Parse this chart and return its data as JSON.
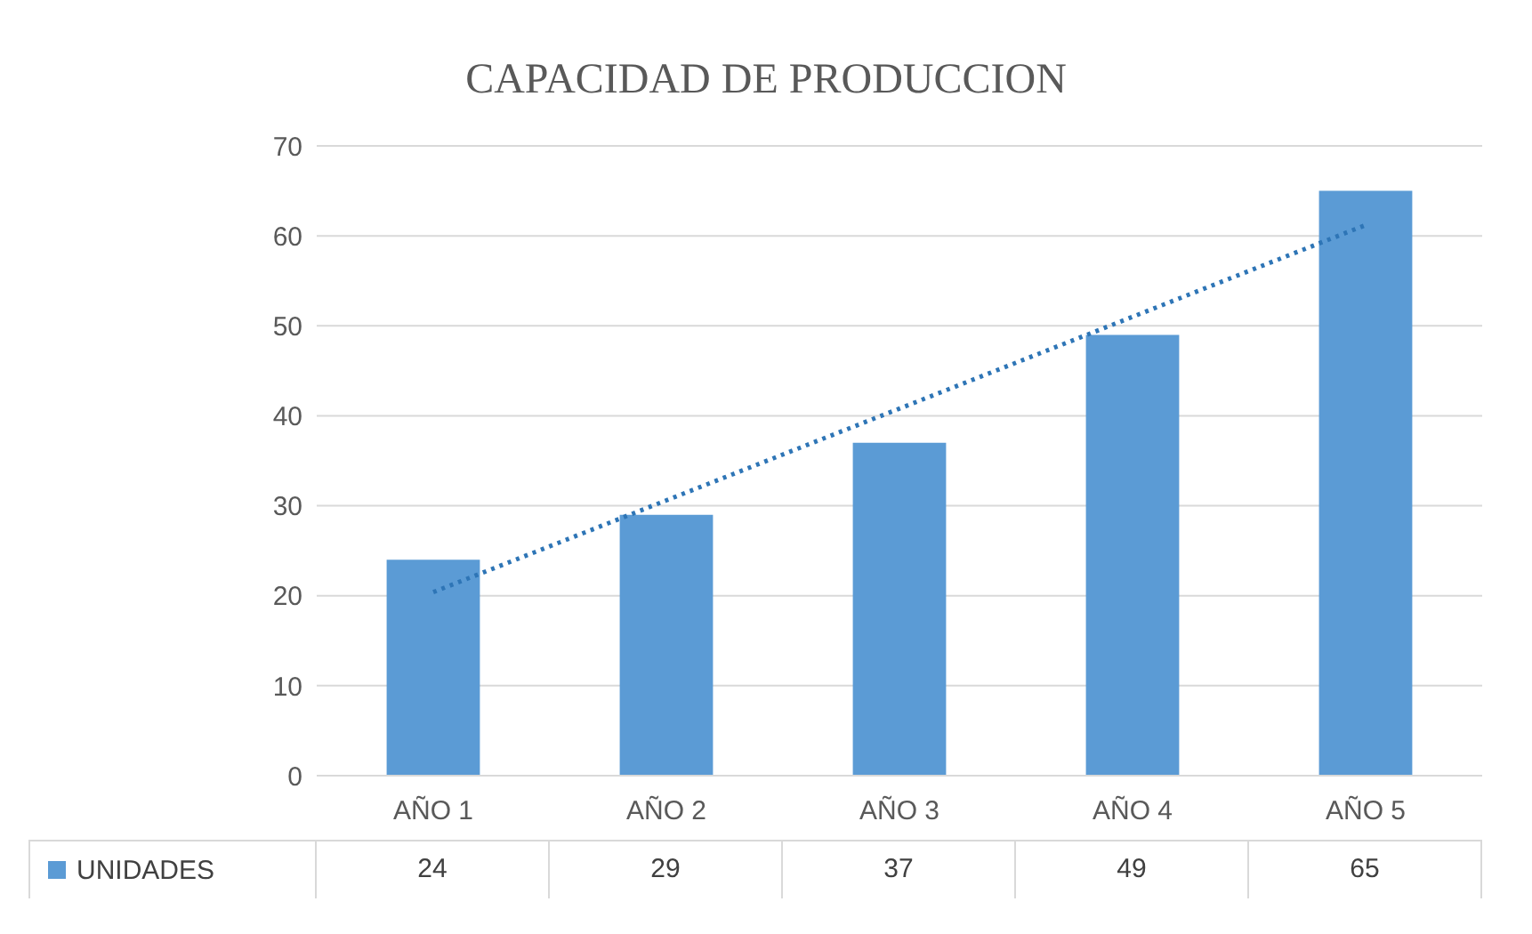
{
  "chart_data": {
    "type": "bar",
    "title": "CAPACIDAD DE PRODUCCION",
    "categories": [
      "AÑO 1",
      "AÑO 2",
      "AÑO 3",
      "AÑO 4",
      "AÑO 5"
    ],
    "series": [
      {
        "name": "UNIDADES",
        "color": "#5b9bd5",
        "values": [
          24,
          29,
          37,
          49,
          65
        ],
        "value_labels": [
          "24",
          "29",
          "37",
          "49",
          "65"
        ]
      },
      {
        "type": "line",
        "color": "#2e75b6",
        "line_style": "dotted",
        "marker": "none",
        "x": [
          "AÑO 1",
          "AÑO 2",
          "AÑO 3",
          "AÑO 4",
          "AÑO 5"
        ],
        "values": [
          20.4,
          30.6,
          40.8,
          51,
          61.2
        ]
      }
    ],
    "ylim": [
      0,
      70
    ],
    "yticks": [
      0,
      10,
      20,
      30,
      40,
      50,
      60,
      70
    ],
    "grid": "y",
    "legend": "bottom"
  }
}
